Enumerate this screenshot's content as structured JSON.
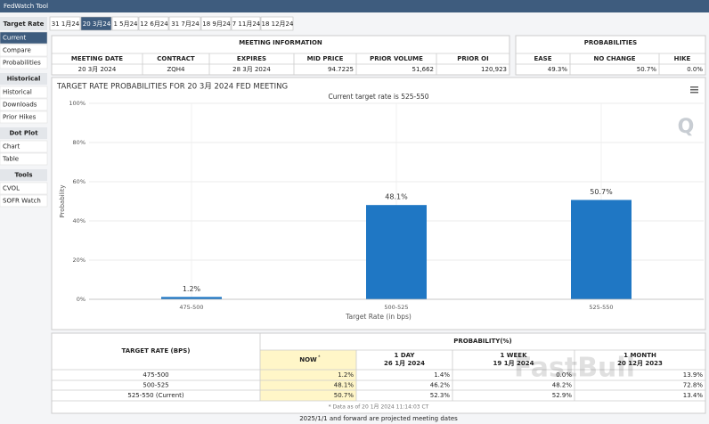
{
  "app_title": "FedWatch Tool",
  "tabs": {
    "label": "Target Rate",
    "items": [
      "31 1月24",
      "20 3月24",
      "1 5月24",
      "12 6月24",
      "31 7月24",
      "18 9月24",
      "7 11月24",
      "18 12月24"
    ],
    "selected": 1
  },
  "sidebar": [
    {
      "heading": "Target Rate",
      "items": [
        "Current",
        "Compare",
        "Probabilities"
      ]
    },
    {
      "heading": "Historical",
      "items": [
        "Historical",
        "Downloads",
        "Prior Hikes"
      ]
    },
    {
      "heading": "Dot Plot",
      "items": [
        "Chart",
        "Table"
      ]
    },
    {
      "heading": "Tools",
      "items": [
        "CVOL",
        "SOFR Watch"
      ]
    }
  ],
  "meeting_information": {
    "title": "MEETING INFORMATION",
    "columns": [
      "MEETING DATE",
      "CONTRACT",
      "EXPIRES",
      "MID PRICE",
      "PRIOR VOLUME",
      "PRIOR OI"
    ],
    "row": [
      "20 3月 2024",
      "ZQH4",
      "28 3月 2024",
      "94.7225",
      "51,662",
      "120,923"
    ]
  },
  "probabilities": {
    "title": "PROBABILITIES",
    "columns": [
      "EASE",
      "NO CHANGE",
      "HIKE"
    ],
    "row": [
      "49.3%",
      "50.7%",
      "0.0%"
    ]
  },
  "chart": {
    "type": "bar",
    "title": "TARGET RATE PROBABILITIES FOR 20 3月 2024 FED MEETING",
    "subtitle": "Current target rate is 525-550",
    "x_label": "Target Rate (in bps)",
    "y_label": "Probability",
    "categories": [
      "475-500",
      "500-525",
      "525-550"
    ],
    "values": [
      1.2,
      48.1,
      50.7
    ],
    "value_labels": [
      "1.2%",
      "48.1%",
      "50.7%"
    ],
    "color": "#1f77c4",
    "ylim": [
      0,
      100
    ],
    "yticks": [
      {
        "value": 0,
        "label": "0%"
      },
      {
        "value": 20,
        "label": "20%"
      },
      {
        "value": 40,
        "label": "40%"
      },
      {
        "value": 60,
        "label": "60%"
      },
      {
        "value": 80,
        "label": "80%"
      },
      {
        "value": 100,
        "label": "100%"
      }
    ],
    "grid": true,
    "watermark": "Q"
  },
  "probability_table": {
    "row_header": "TARGET RATE (BPS)",
    "title": "PROBABILITY(%)",
    "columns": [
      {
        "label": "NOW",
        "mark": "*"
      },
      {
        "label": "1 DAY",
        "date": "26 1月 2024"
      },
      {
        "label": "1 WEEK",
        "date": "19 1月 2024"
      },
      {
        "label": "1 MONTH",
        "date": "20 12月 2023"
      }
    ],
    "rows": [
      [
        "475-500",
        "1.2%",
        "1.4%",
        "0.0%",
        "13.9%"
      ],
      [
        "500-525",
        "48.1%",
        "46.2%",
        "48.2%",
        "72.8%"
      ],
      [
        "525-550 (Current)",
        "50.7%",
        "52.3%",
        "52.9%",
        "13.4%"
      ]
    ],
    "footnote": "* Data as of 20 1月 2024 11:14:03 CT",
    "projection_note": "2025/1/1 and forward are projected meeting dates"
  },
  "overlay_watermark": "FastBull"
}
